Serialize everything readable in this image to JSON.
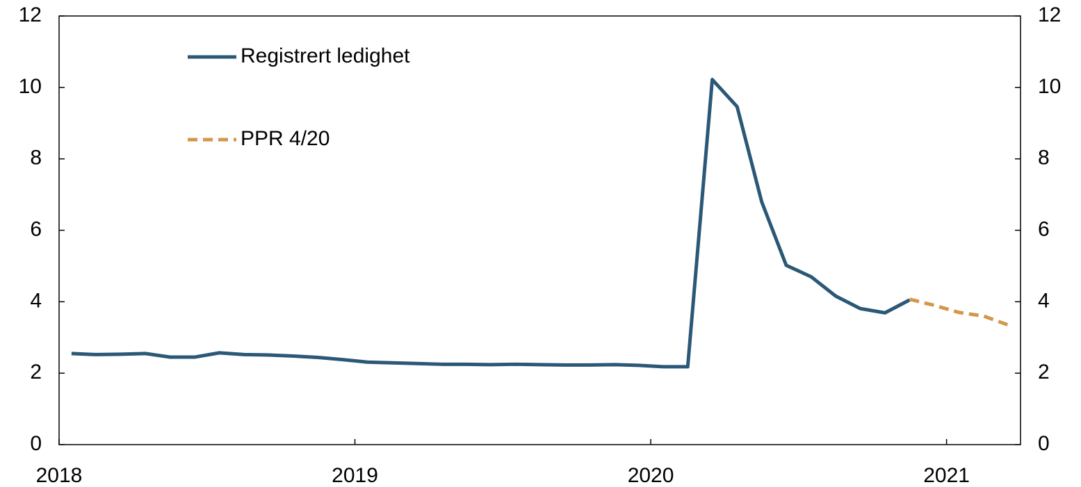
{
  "chart_data": {
    "type": "line",
    "xlim": [
      2018,
      2021.25
    ],
    "xticks": [
      2018,
      2019,
      2020,
      2021
    ],
    "ylim": [
      0,
      12
    ],
    "yticks": [
      0,
      2,
      4,
      6,
      8,
      10,
      12
    ],
    "y2lim": [
      0,
      12
    ],
    "y2ticks": [
      0,
      2,
      4,
      6,
      8,
      10,
      12
    ],
    "series": [
      {
        "name": "Registrert ledighet",
        "color": "#2b5876",
        "dash": false,
        "x": [
          2018.042,
          2018.125,
          2018.208,
          2018.292,
          2018.375,
          2018.458,
          2018.542,
          2018.625,
          2018.708,
          2018.792,
          2018.875,
          2018.958,
          2019.042,
          2019.125,
          2019.208,
          2019.292,
          2019.375,
          2019.458,
          2019.542,
          2019.625,
          2019.708,
          2019.792,
          2019.875,
          2019.958,
          2020.042,
          2020.125,
          2020.208,
          2020.292,
          2020.375,
          2020.458,
          2020.542,
          2020.625,
          2020.708,
          2020.792,
          2020.875
        ],
        "values": [
          2.55,
          2.52,
          2.53,
          2.55,
          2.45,
          2.45,
          2.57,
          2.52,
          2.51,
          2.48,
          2.44,
          2.38,
          2.31,
          2.29,
          2.27,
          2.25,
          2.25,
          2.24,
          2.25,
          2.24,
          2.23,
          2.23,
          2.24,
          2.22,
          2.18,
          2.18,
          10.22,
          9.46,
          6.8,
          5.02,
          4.7,
          4.16,
          3.81,
          3.69,
          4.05
        ]
      },
      {
        "name": "PPR 4/20",
        "color": "#d4964a",
        "dash": true,
        "x": [
          2020.875,
          2020.958,
          2021.042,
          2021.125,
          2021.208
        ],
        "values": [
          4.07,
          3.9,
          3.7,
          3.6,
          3.35
        ]
      }
    ]
  }
}
